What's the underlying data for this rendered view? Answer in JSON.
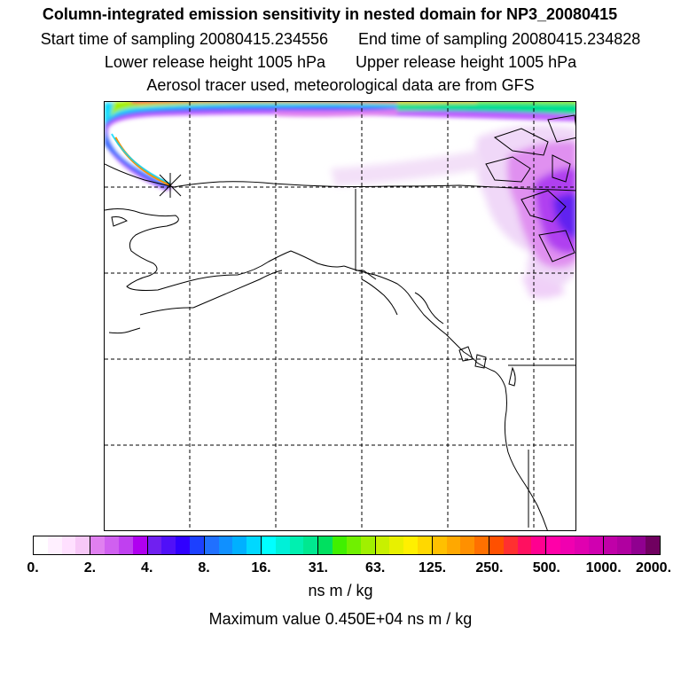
{
  "header": {
    "title": "Column-integrated emission sensitivity in nested domain for NP3_20080415",
    "start_sampling": "Start time of sampling 20080415.234556",
    "end_sampling": "End time of sampling 20080415.234828",
    "lower_release": "Lower release height 1005 hPa",
    "upper_release": "Upper release height 1005 hPa",
    "tracer_info": "Aerosol tracer used, meteorological data are from GFS"
  },
  "map": {
    "region": "Alaska, western Canada and the US Pacific Northwest",
    "release_marker": "x-marker",
    "plume_colors": [
      "#ff0000",
      "#ffd000",
      "#00e0ff",
      "#8000ff",
      "#c060ff"
    ]
  },
  "colorbar": {
    "ticks": [
      "0.",
      "2.",
      "4.",
      "8.",
      "16.",
      "31.",
      "63.",
      "125.",
      "250.",
      "500.",
      "1000.",
      "2000."
    ],
    "colors": [
      "#ffffff",
      "#fff0ff",
      "#ffe0ff",
      "#f7c8f7",
      "#e080f0",
      "#d060f0",
      "#c040f0",
      "#b000f0",
      "#7020f0",
      "#5010f8",
      "#3000ff",
      "#1c40ff",
      "#2070ff",
      "#1090ff",
      "#00b0ff",
      "#00d8ff",
      "#00ffff",
      "#00f0d8",
      "#00f0b0",
      "#00e890",
      "#00e060",
      "#40f000",
      "#70f000",
      "#a0f000",
      "#c8f000",
      "#e8f000",
      "#fff000",
      "#ffd800",
      "#ffc000",
      "#ffa800",
      "#ff9000",
      "#ff7000",
      "#ff5000",
      "#ff3030",
      "#ff1060",
      "#ff0090",
      "#ff00a8",
      "#f000b0",
      "#e000b0",
      "#d000b0",
      "#c000a8",
      "#b000a0",
      "#900090",
      "#700060"
    ]
  },
  "units": "ns m / kg",
  "max_value": "Maximum value  0.450E+04 ns m / kg"
}
